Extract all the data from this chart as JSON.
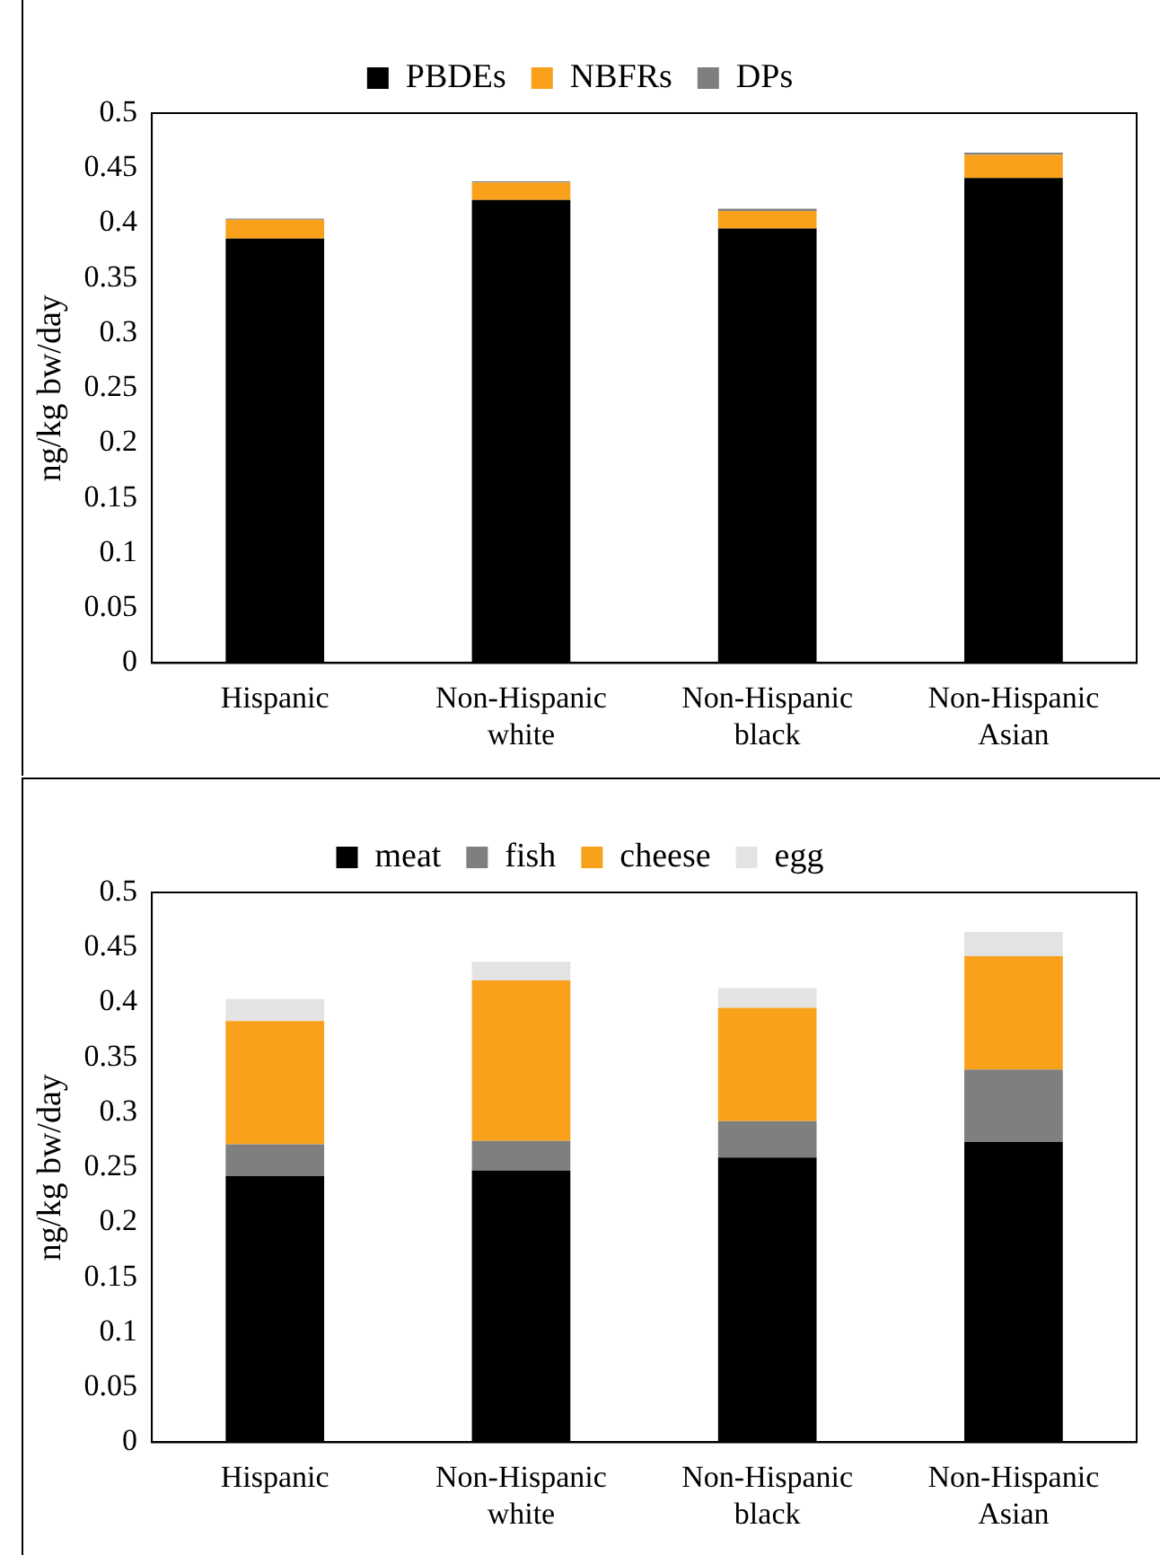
{
  "chart_data": [
    {
      "type": "bar",
      "stacked": true,
      "ylabel": "ng/kg bw/day",
      "categories": [
        "Hispanic",
        "Non-Hispanic white",
        "Non-Hispanic black",
        "Non-Hispanic Asian"
      ],
      "ylim": [
        0,
        0.5
      ],
      "yticks": [
        0,
        0.05,
        0.1,
        0.15,
        0.2,
        0.25,
        0.3,
        0.35,
        0.4,
        0.45,
        0.5
      ],
      "grid": false,
      "legend": "top",
      "series": [
        {
          "name": "PBDEs",
          "color": "#000000",
          "values": [
            0.386,
            0.421,
            0.395,
            0.441
          ]
        },
        {
          "name": "NBFRs",
          "color": "#f9a11b",
          "values": [
            0.017,
            0.016,
            0.016,
            0.021
          ]
        },
        {
          "name": "DPs",
          "color": "#7f7f7f",
          "values": [
            0.001,
            0.001,
            0.002,
            0.002
          ]
        }
      ]
    },
    {
      "type": "bar",
      "stacked": true,
      "ylabel": "ng/kg bw/day",
      "categories": [
        "Hispanic",
        "Non-Hispanic white",
        "Non-Hispanic black",
        "Non-Hispanic Asian"
      ],
      "ylim": [
        0,
        0.5
      ],
      "yticks": [
        0,
        0.05,
        0.1,
        0.15,
        0.2,
        0.25,
        0.3,
        0.35,
        0.4,
        0.45,
        0.5
      ],
      "grid": false,
      "legend": "top",
      "series": [
        {
          "name": "meat",
          "color": "#000000",
          "values": [
            0.242,
            0.247,
            0.259,
            0.273
          ]
        },
        {
          "name": "fish",
          "color": "#7f7f7f",
          "values": [
            0.029,
            0.027,
            0.033,
            0.066
          ]
        },
        {
          "name": "cheese",
          "color": "#f9a11b",
          "values": [
            0.112,
            0.146,
            0.103,
            0.103
          ]
        },
        {
          "name": "egg",
          "color": "#e3e3e3",
          "values": [
            0.02,
            0.017,
            0.018,
            0.022
          ]
        }
      ]
    }
  ]
}
